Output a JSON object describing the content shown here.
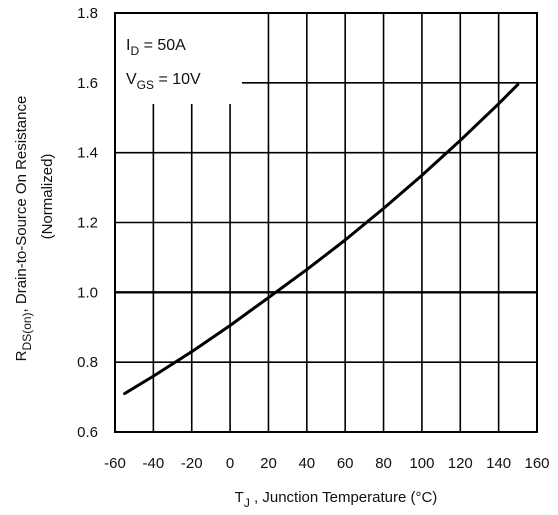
{
  "chart_data": {
    "type": "line",
    "title": "",
    "xlabel": {
      "main": "T",
      "sub": "J",
      "rest": " , Junction Temperature (°C)"
    },
    "ylabel": {
      "line1_main": "R",
      "line1_sub": "DS(on)",
      "line1_rest": ", Drain-to-Source On Resistance",
      "line2": "(Normalized)"
    },
    "xlim": [
      -60,
      160
    ],
    "ylim": [
      0.6,
      1.8
    ],
    "x_ticks": [
      "-60",
      "-40",
      "-20",
      "0",
      "20",
      "40",
      "60",
      "80",
      "100",
      "120",
      "140",
      "160"
    ],
    "y_ticks": [
      "0.6",
      "0.8",
      "1.0",
      "1.2",
      "1.4",
      "1.6",
      "1.8"
    ],
    "grid": true,
    "annotations": {
      "id": {
        "main": "I",
        "sub": "D",
        "rest": " = 50A"
      },
      "vgs": {
        "main": "V",
        "sub": "GS",
        "rest": " = 10V"
      }
    },
    "series": [
      {
        "x": [
          -55,
          -40,
          -20,
          0,
          20,
          40,
          60,
          80,
          100,
          120,
          140,
          150
        ],
        "y": [
          0.71,
          0.76,
          0.83,
          0.905,
          0.985,
          1.065,
          1.15,
          1.24,
          1.335,
          1.435,
          1.54,
          1.595
        ]
      }
    ]
  }
}
